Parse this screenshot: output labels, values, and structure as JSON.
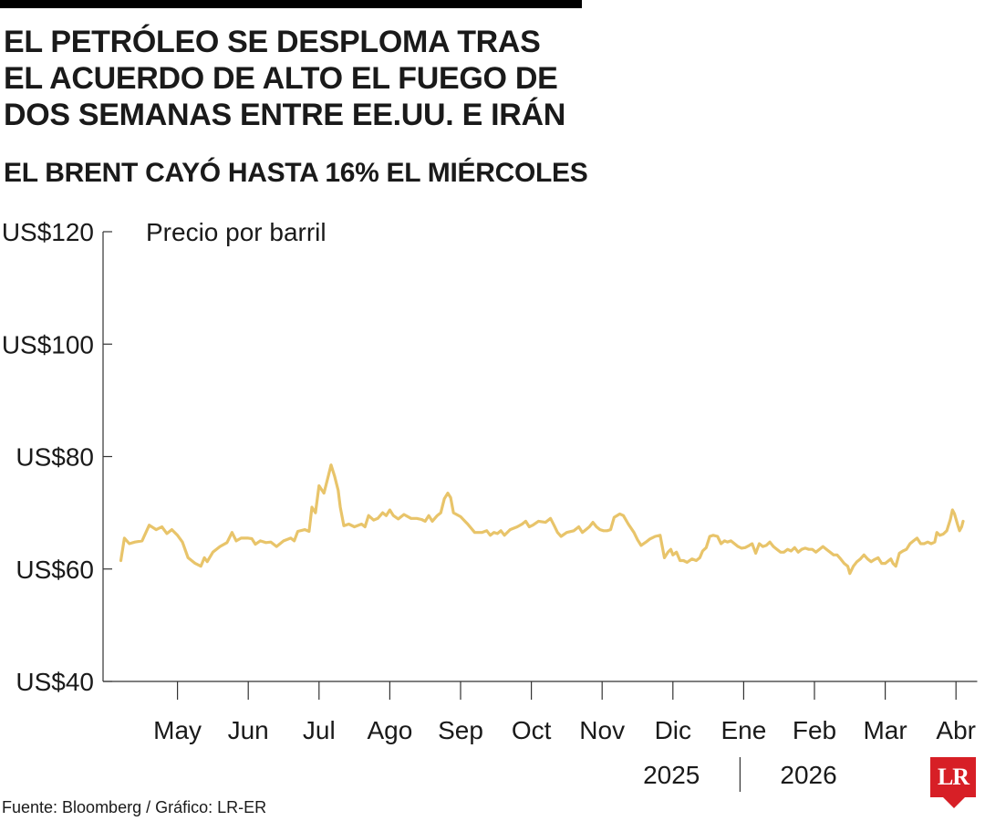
{
  "header": {
    "title_lines": [
      "EL PETRÓLEO SE DESPLOMA TRAS",
      "EL ACUERDO DE ALTO EL FUEGO DE",
      "DOS SEMANAS ENTRE EE.UU. E IRÁN"
    ],
    "subtitle": "EL BRENT CAYÓ HASTA 16% EL MIÉRCOLES"
  },
  "chart_data": {
    "type": "line",
    "ylabel": "Precio por barril",
    "ylim": [
      40,
      120
    ],
    "y_ticks": [
      {
        "value": 120,
        "label": "US$120"
      },
      {
        "value": 100,
        "label": "US$100"
      },
      {
        "value": 80,
        "label": "US$80"
      },
      {
        "value": 60,
        "label": "US$60"
      },
      {
        "value": 40,
        "label": "US$40"
      }
    ],
    "xlim": [
      0,
      12.3
    ],
    "x_ticks": [
      {
        "value": 1,
        "label": "May"
      },
      {
        "value": 2,
        "label": "Jun"
      },
      {
        "value": 3,
        "label": "Jul"
      },
      {
        "value": 4,
        "label": "Ago"
      },
      {
        "value": 5,
        "label": "Sep"
      },
      {
        "value": 6,
        "label": "Oct"
      },
      {
        "value": 7,
        "label": "Nov"
      },
      {
        "value": 8,
        "label": "Dic"
      },
      {
        "value": 9,
        "label": "Ene"
      },
      {
        "value": 10,
        "label": "Feb"
      },
      {
        "value": 11,
        "label": "Mar"
      },
      {
        "value": 12,
        "label": "Abr"
      }
    ],
    "year_labels": [
      {
        "label": "2025",
        "year_boundary": 9
      },
      {
        "label": "2026",
        "year_boundary": 9
      }
    ],
    "series": [
      {
        "color": "#e8c46a",
        "points": [
          [
            0.2,
            61.5
          ],
          [
            0.25,
            65.5
          ],
          [
            0.32,
            64.5
          ],
          [
            0.4,
            64.8
          ],
          [
            0.5,
            65.0
          ],
          [
            0.6,
            67.8
          ],
          [
            0.7,
            67.0
          ],
          [
            0.78,
            67.5
          ],
          [
            0.85,
            66.3
          ],
          [
            0.92,
            67.0
          ],
          [
            1.0,
            66.0
          ],
          [
            1.07,
            64.8
          ],
          [
            1.15,
            62.0
          ],
          [
            1.25,
            61.0
          ],
          [
            1.33,
            60.5
          ],
          [
            1.38,
            62.0
          ],
          [
            1.42,
            61.3
          ],
          [
            1.5,
            63.0
          ],
          [
            1.6,
            64.0
          ],
          [
            1.7,
            64.7
          ],
          [
            1.77,
            66.5
          ],
          [
            1.83,
            65.0
          ],
          [
            1.9,
            65.5
          ],
          [
            2.0,
            65.5
          ],
          [
            2.05,
            65.4
          ],
          [
            2.1,
            64.4
          ],
          [
            2.17,
            65.0
          ],
          [
            2.25,
            64.7
          ],
          [
            2.32,
            64.8
          ],
          [
            2.4,
            64.0
          ],
          [
            2.5,
            65.0
          ],
          [
            2.6,
            65.5
          ],
          [
            2.65,
            65.0
          ],
          [
            2.7,
            66.7
          ],
          [
            2.8,
            67.0
          ],
          [
            2.86,
            66.7
          ],
          [
            2.9,
            71.0
          ],
          [
            2.95,
            70.0
          ],
          [
            3.0,
            74.8
          ],
          [
            3.07,
            73.5
          ],
          [
            3.13,
            76.5
          ],
          [
            3.17,
            78.5
          ],
          [
            3.22,
            76.5
          ],
          [
            3.27,
            74.0
          ],
          [
            3.3,
            71.0
          ],
          [
            3.35,
            67.7
          ],
          [
            3.42,
            68.0
          ],
          [
            3.5,
            67.5
          ],
          [
            3.6,
            68.0
          ],
          [
            3.65,
            67.5
          ],
          [
            3.7,
            69.5
          ],
          [
            3.77,
            68.7
          ],
          [
            3.83,
            69.0
          ],
          [
            3.9,
            70.0
          ],
          [
            3.95,
            69.5
          ],
          [
            4.0,
            70.5
          ],
          [
            4.05,
            69.5
          ],
          [
            4.12,
            68.9
          ],
          [
            4.2,
            69.7
          ],
          [
            4.3,
            69.0
          ],
          [
            4.38,
            69.0
          ],
          [
            4.45,
            68.8
          ],
          [
            4.5,
            68.5
          ],
          [
            4.55,
            69.5
          ],
          [
            4.6,
            68.5
          ],
          [
            4.67,
            69.5
          ],
          [
            4.72,
            70.0
          ],
          [
            4.77,
            72.5
          ],
          [
            4.82,
            73.5
          ],
          [
            4.86,
            72.7
          ],
          [
            4.9,
            70.0
          ],
          [
            5.0,
            69.3
          ],
          [
            5.1,
            68.0
          ],
          [
            5.2,
            66.5
          ],
          [
            5.3,
            66.5
          ],
          [
            5.37,
            66.8
          ],
          [
            5.42,
            66.0
          ],
          [
            5.47,
            66.5
          ],
          [
            5.52,
            66.3
          ],
          [
            5.57,
            66.8
          ],
          [
            5.62,
            66.0
          ],
          [
            5.7,
            67.0
          ],
          [
            5.8,
            67.5
          ],
          [
            5.87,
            68.0
          ],
          [
            5.92,
            68.5
          ],
          [
            5.97,
            67.5
          ],
          [
            6.02,
            67.8
          ],
          [
            6.1,
            68.5
          ],
          [
            6.2,
            68.3
          ],
          [
            6.27,
            69.0
          ],
          [
            6.32,
            67.8
          ],
          [
            6.37,
            66.5
          ],
          [
            6.42,
            65.8
          ],
          [
            6.5,
            66.5
          ],
          [
            6.6,
            66.8
          ],
          [
            6.67,
            67.5
          ],
          [
            6.72,
            66.5
          ],
          [
            6.77,
            67.0
          ],
          [
            6.82,
            67.5
          ],
          [
            6.87,
            68.3
          ],
          [
            6.92,
            67.5
          ],
          [
            6.97,
            67.0
          ],
          [
            7.02,
            66.8
          ],
          [
            7.07,
            66.8
          ],
          [
            7.12,
            67.0
          ],
          [
            7.17,
            69.2
          ],
          [
            7.25,
            69.8
          ],
          [
            7.3,
            69.5
          ],
          [
            7.37,
            68.0
          ],
          [
            7.45,
            66.5
          ],
          [
            7.5,
            65.2
          ],
          [
            7.55,
            64.2
          ],
          [
            7.62,
            64.8
          ],
          [
            7.67,
            65.3
          ],
          [
            7.75,
            65.8
          ],
          [
            7.82,
            66.0
          ],
          [
            7.88,
            62.0
          ],
          [
            7.93,
            63.0
          ],
          [
            7.97,
            63.5
          ],
          [
            8.0,
            62.5
          ],
          [
            8.05,
            63.0
          ],
          [
            8.1,
            61.5
          ],
          [
            8.15,
            61.5
          ],
          [
            8.2,
            61.2
          ],
          [
            8.27,
            61.8
          ],
          [
            8.33,
            61.5
          ],
          [
            8.38,
            62.0
          ],
          [
            8.42,
            63.2
          ],
          [
            8.47,
            63.8
          ],
          [
            8.52,
            65.8
          ],
          [
            8.57,
            66.0
          ],
          [
            8.63,
            65.8
          ],
          [
            8.68,
            64.5
          ],
          [
            8.73,
            65.0
          ],
          [
            8.77,
            64.8
          ],
          [
            8.82,
            65.0
          ],
          [
            8.87,
            64.5
          ],
          [
            8.92,
            64.0
          ],
          [
            8.97,
            63.7
          ],
          [
            9.02,
            63.8
          ],
          [
            9.08,
            64.2
          ],
          [
            9.12,
            64.5
          ],
          [
            9.17,
            62.8
          ],
          [
            9.22,
            64.5
          ],
          [
            9.27,
            64.0
          ],
          [
            9.32,
            64.2
          ],
          [
            9.37,
            64.8
          ],
          [
            9.42,
            64.0
          ],
          [
            9.47,
            63.5
          ],
          [
            9.52,
            63.0
          ],
          [
            9.57,
            63.0
          ],
          [
            9.62,
            63.5
          ],
          [
            9.67,
            63.2
          ],
          [
            9.72,
            63.8
          ],
          [
            9.77,
            63.0
          ],
          [
            9.82,
            63.5
          ],
          [
            9.87,
            63.7
          ],
          [
            9.92,
            63.5
          ],
          [
            9.97,
            63.5
          ],
          [
            10.02,
            63.0
          ],
          [
            10.07,
            63.5
          ],
          [
            10.12,
            64.0
          ],
          [
            10.17,
            63.5
          ],
          [
            10.22,
            63.0
          ],
          [
            10.27,
            62.5
          ],
          [
            10.32,
            62.5
          ],
          [
            10.37,
            61.8
          ],
          [
            10.42,
            61.0
          ],
          [
            10.47,
            60.5
          ],
          [
            10.5,
            59.2
          ],
          [
            10.55,
            60.5
          ],
          [
            10.6,
            61.3
          ],
          [
            10.65,
            61.8
          ],
          [
            10.7,
            62.5
          ],
          [
            10.75,
            61.8
          ],
          [
            10.8,
            61.3
          ],
          [
            10.85,
            61.7
          ],
          [
            10.9,
            62.0
          ],
          [
            10.95,
            61.0
          ],
          [
            11.0,
            61.0
          ],
          [
            11.05,
            61.5
          ],
          [
            11.08,
            61.8
          ],
          [
            11.11,
            61.0
          ],
          [
            11.15,
            60.5
          ],
          [
            11.2,
            62.8
          ],
          [
            11.25,
            63.2
          ],
          [
            11.3,
            63.5
          ],
          [
            11.35,
            64.5
          ],
          [
            11.4,
            65.0
          ],
          [
            11.45,
            65.5
          ],
          [
            11.5,
            64.5
          ],
          [
            11.55,
            64.5
          ],
          [
            11.6,
            64.8
          ],
          [
            11.65,
            64.5
          ],
          [
            11.7,
            64.8
          ],
          [
            11.73,
            66.5
          ],
          [
            11.77,
            66.0
          ],
          [
            11.82,
            66.2
          ],
          [
            11.87,
            66.8
          ],
          [
            11.92,
            68.8
          ],
          [
            11.95,
            70.5
          ],
          [
            11.98,
            69.8
          ],
          [
            12.02,
            68.0
          ],
          [
            12.05,
            66.8
          ],
          [
            12.08,
            67.5
          ],
          [
            12.1,
            68.5
          ]
        ]
      }
    ]
  },
  "footer": {
    "source": "Fuente: Bloomberg / Gráfico: LR-ER"
  },
  "logo": {
    "text": "LR",
    "color": "#d71f26"
  }
}
